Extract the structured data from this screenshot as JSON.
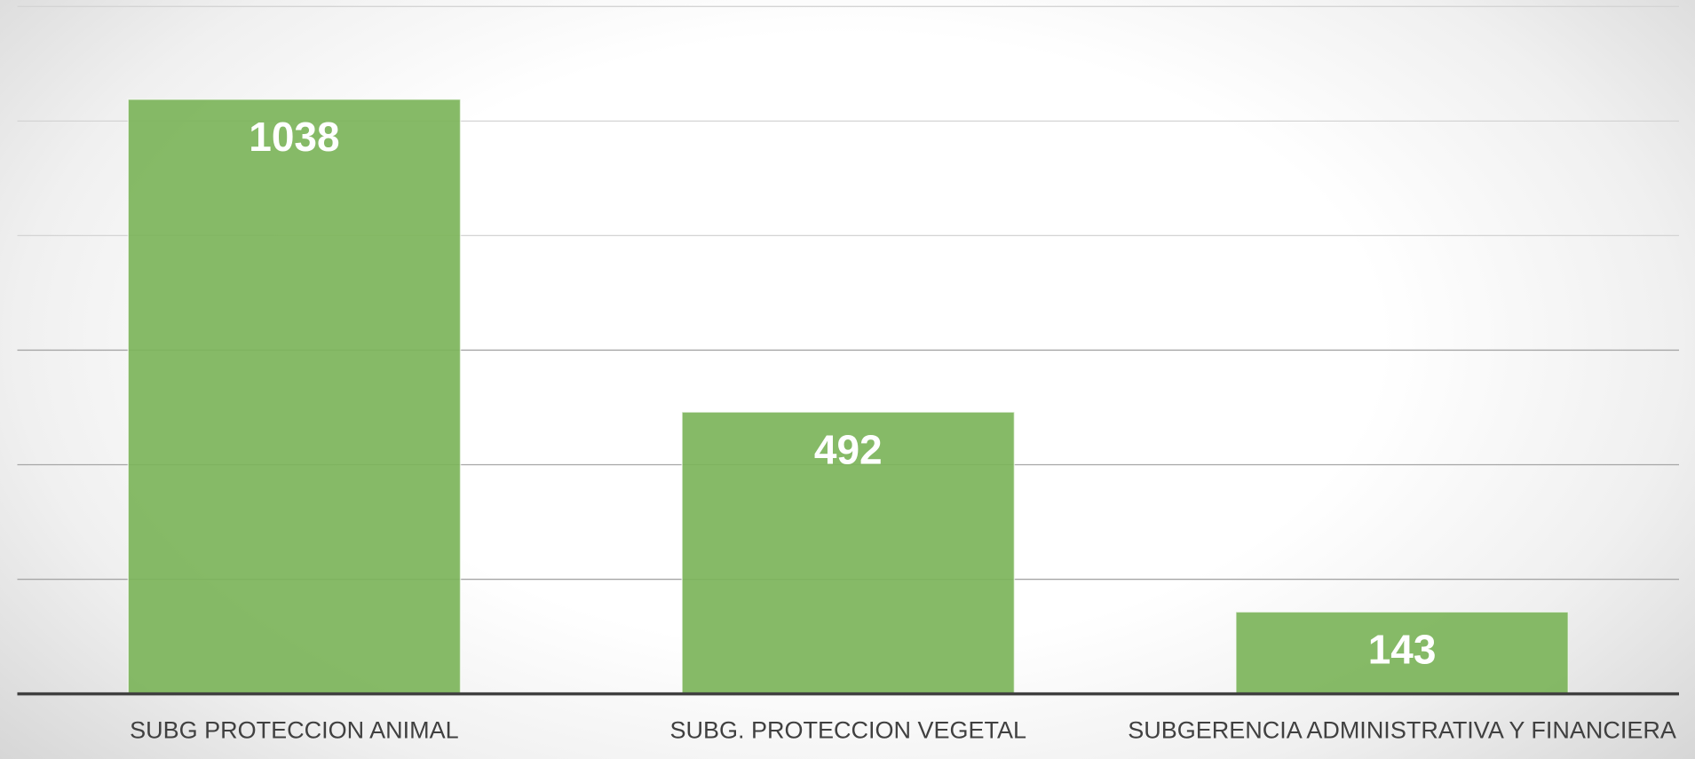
{
  "chart_data": {
    "type": "bar",
    "categories": [
      "SUBG PROTECCION ANIMAL",
      "SUBG. PROTECCION VEGETAL",
      "SUBGERENCIA ADMINISTRATIVA Y FINANCIERA"
    ],
    "values": [
      1038,
      492,
      143
    ],
    "color": "#7cb45a",
    "ylim": [
      0,
      1200
    ],
    "yticks": [
      0,
      200,
      400,
      600,
      800,
      1000,
      1200
    ],
    "grid": true
  }
}
